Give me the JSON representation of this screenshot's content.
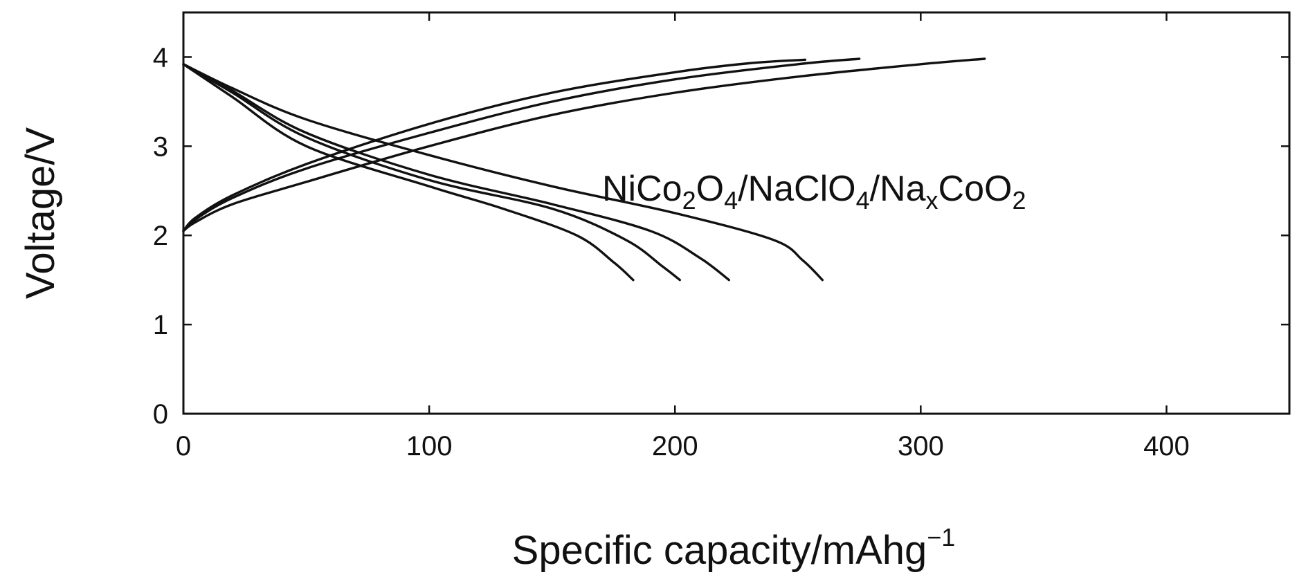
{
  "chart_data": {
    "type": "line",
    "title": "",
    "xlabel": "Specific capacity/mAhg",
    "xlabel_exponent": "−1",
    "ylabel": "Voltage/V",
    "xlim": [
      0,
      450
    ],
    "ylim": [
      0,
      4.5
    ],
    "x_ticks": [
      0,
      100,
      200,
      300,
      400
    ],
    "y_ticks": [
      0,
      1,
      2,
      3,
      4
    ],
    "grid": false,
    "legend": "none",
    "annotation": {
      "parts": [
        {
          "text": "NiCo",
          "sub": false
        },
        {
          "text": "2",
          "sub": true
        },
        {
          "text": "O",
          "sub": false
        },
        {
          "text": "4",
          "sub": true
        },
        {
          "text": "/NaClO",
          "sub": false
        },
        {
          "text": "4",
          "sub": true
        },
        {
          "text": "/Na",
          "sub": false
        },
        {
          "text": "x",
          "sub": true
        },
        {
          "text": "CoO",
          "sub": false
        },
        {
          "text": "2",
          "sub": true
        }
      ]
    },
    "series": [
      {
        "kind": "charge",
        "x": [
          0,
          5,
          20,
          50,
          100,
          150,
          200,
          230,
          253
        ],
        "y": [
          2.05,
          2.2,
          2.45,
          2.8,
          3.25,
          3.6,
          3.83,
          3.93,
          3.97
        ]
      },
      {
        "kind": "charge",
        "x": [
          0,
          5,
          20,
          50,
          100,
          150,
          200,
          250,
          275
        ],
        "y": [
          2.05,
          2.18,
          2.42,
          2.75,
          3.15,
          3.5,
          3.75,
          3.92,
          3.98
        ]
      },
      {
        "kind": "charge",
        "x": [
          0,
          5,
          20,
          50,
          100,
          150,
          200,
          250,
          300,
          326
        ],
        "y": [
          2.05,
          2.15,
          2.35,
          2.6,
          3.0,
          3.35,
          3.6,
          3.78,
          3.92,
          3.98
        ]
      },
      {
        "kind": "discharge",
        "x": [
          0,
          20,
          50,
          100,
          130,
          160,
          175,
          183
        ],
        "y": [
          3.92,
          3.55,
          3.0,
          2.55,
          2.3,
          2.0,
          1.7,
          1.5
        ]
      },
      {
        "kind": "discharge",
        "x": [
          0,
          20,
          50,
          100,
          150,
          180,
          195,
          202
        ],
        "y": [
          3.92,
          3.6,
          3.1,
          2.62,
          2.3,
          1.95,
          1.65,
          1.5
        ]
      },
      {
        "kind": "discharge",
        "x": [
          0,
          20,
          50,
          100,
          150,
          190,
          210,
          222
        ],
        "y": [
          3.92,
          3.62,
          3.15,
          2.68,
          2.35,
          2.05,
          1.75,
          1.5
        ]
      },
      {
        "kind": "discharge",
        "x": [
          0,
          20,
          50,
          100,
          150,
          200,
          240,
          252,
          260
        ],
        "y": [
          3.92,
          3.65,
          3.3,
          2.9,
          2.55,
          2.25,
          1.95,
          1.72,
          1.5
        ]
      }
    ]
  }
}
